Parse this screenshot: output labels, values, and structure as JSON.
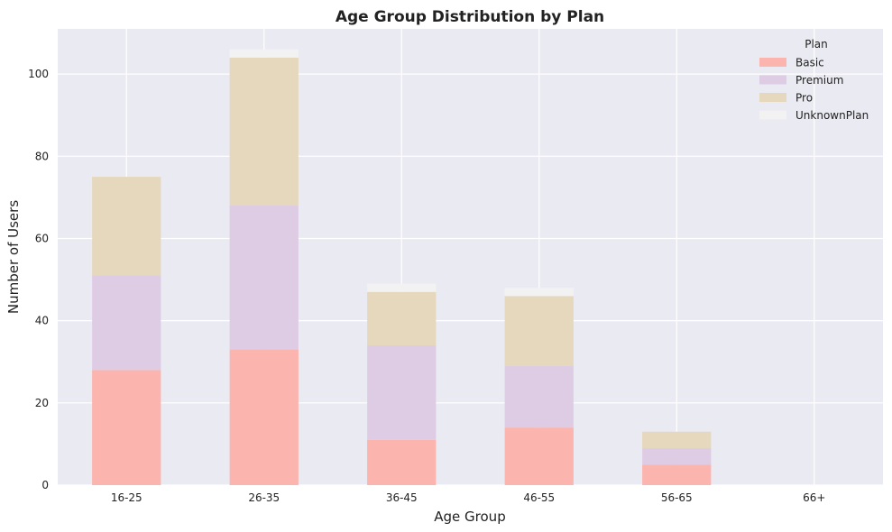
{
  "chart_data": {
    "type": "bar",
    "stacked": true,
    "title": "Age Group Distribution by Plan",
    "xlabel": "Age Group",
    "ylabel": "Number of Users",
    "categories": [
      "16-25",
      "26-35",
      "36-45",
      "46-55",
      "56-65",
      "66+"
    ],
    "series": [
      {
        "name": "Basic",
        "values": [
          28,
          33,
          11,
          14,
          5,
          0
        ],
        "color": "#fbb4ae"
      },
      {
        "name": "Premium",
        "values": [
          23,
          35,
          23,
          15,
          4,
          0
        ],
        "color": "#decbe4"
      },
      {
        "name": "Pro",
        "values": [
          24,
          36,
          13,
          17,
          4,
          0
        ],
        "color": "#e5d8bd"
      },
      {
        "name": "UnknownPlan",
        "values": [
          0,
          2,
          2,
          2,
          0,
          0
        ],
        "color": "#f2f2f2"
      }
    ],
    "ylim": [
      0,
      111
    ],
    "yticks": [
      0,
      20,
      40,
      60,
      80,
      100
    ],
    "grid": true,
    "background": "#eaeaf2",
    "legend": {
      "title": "Plan",
      "placement": "top-right"
    }
  }
}
